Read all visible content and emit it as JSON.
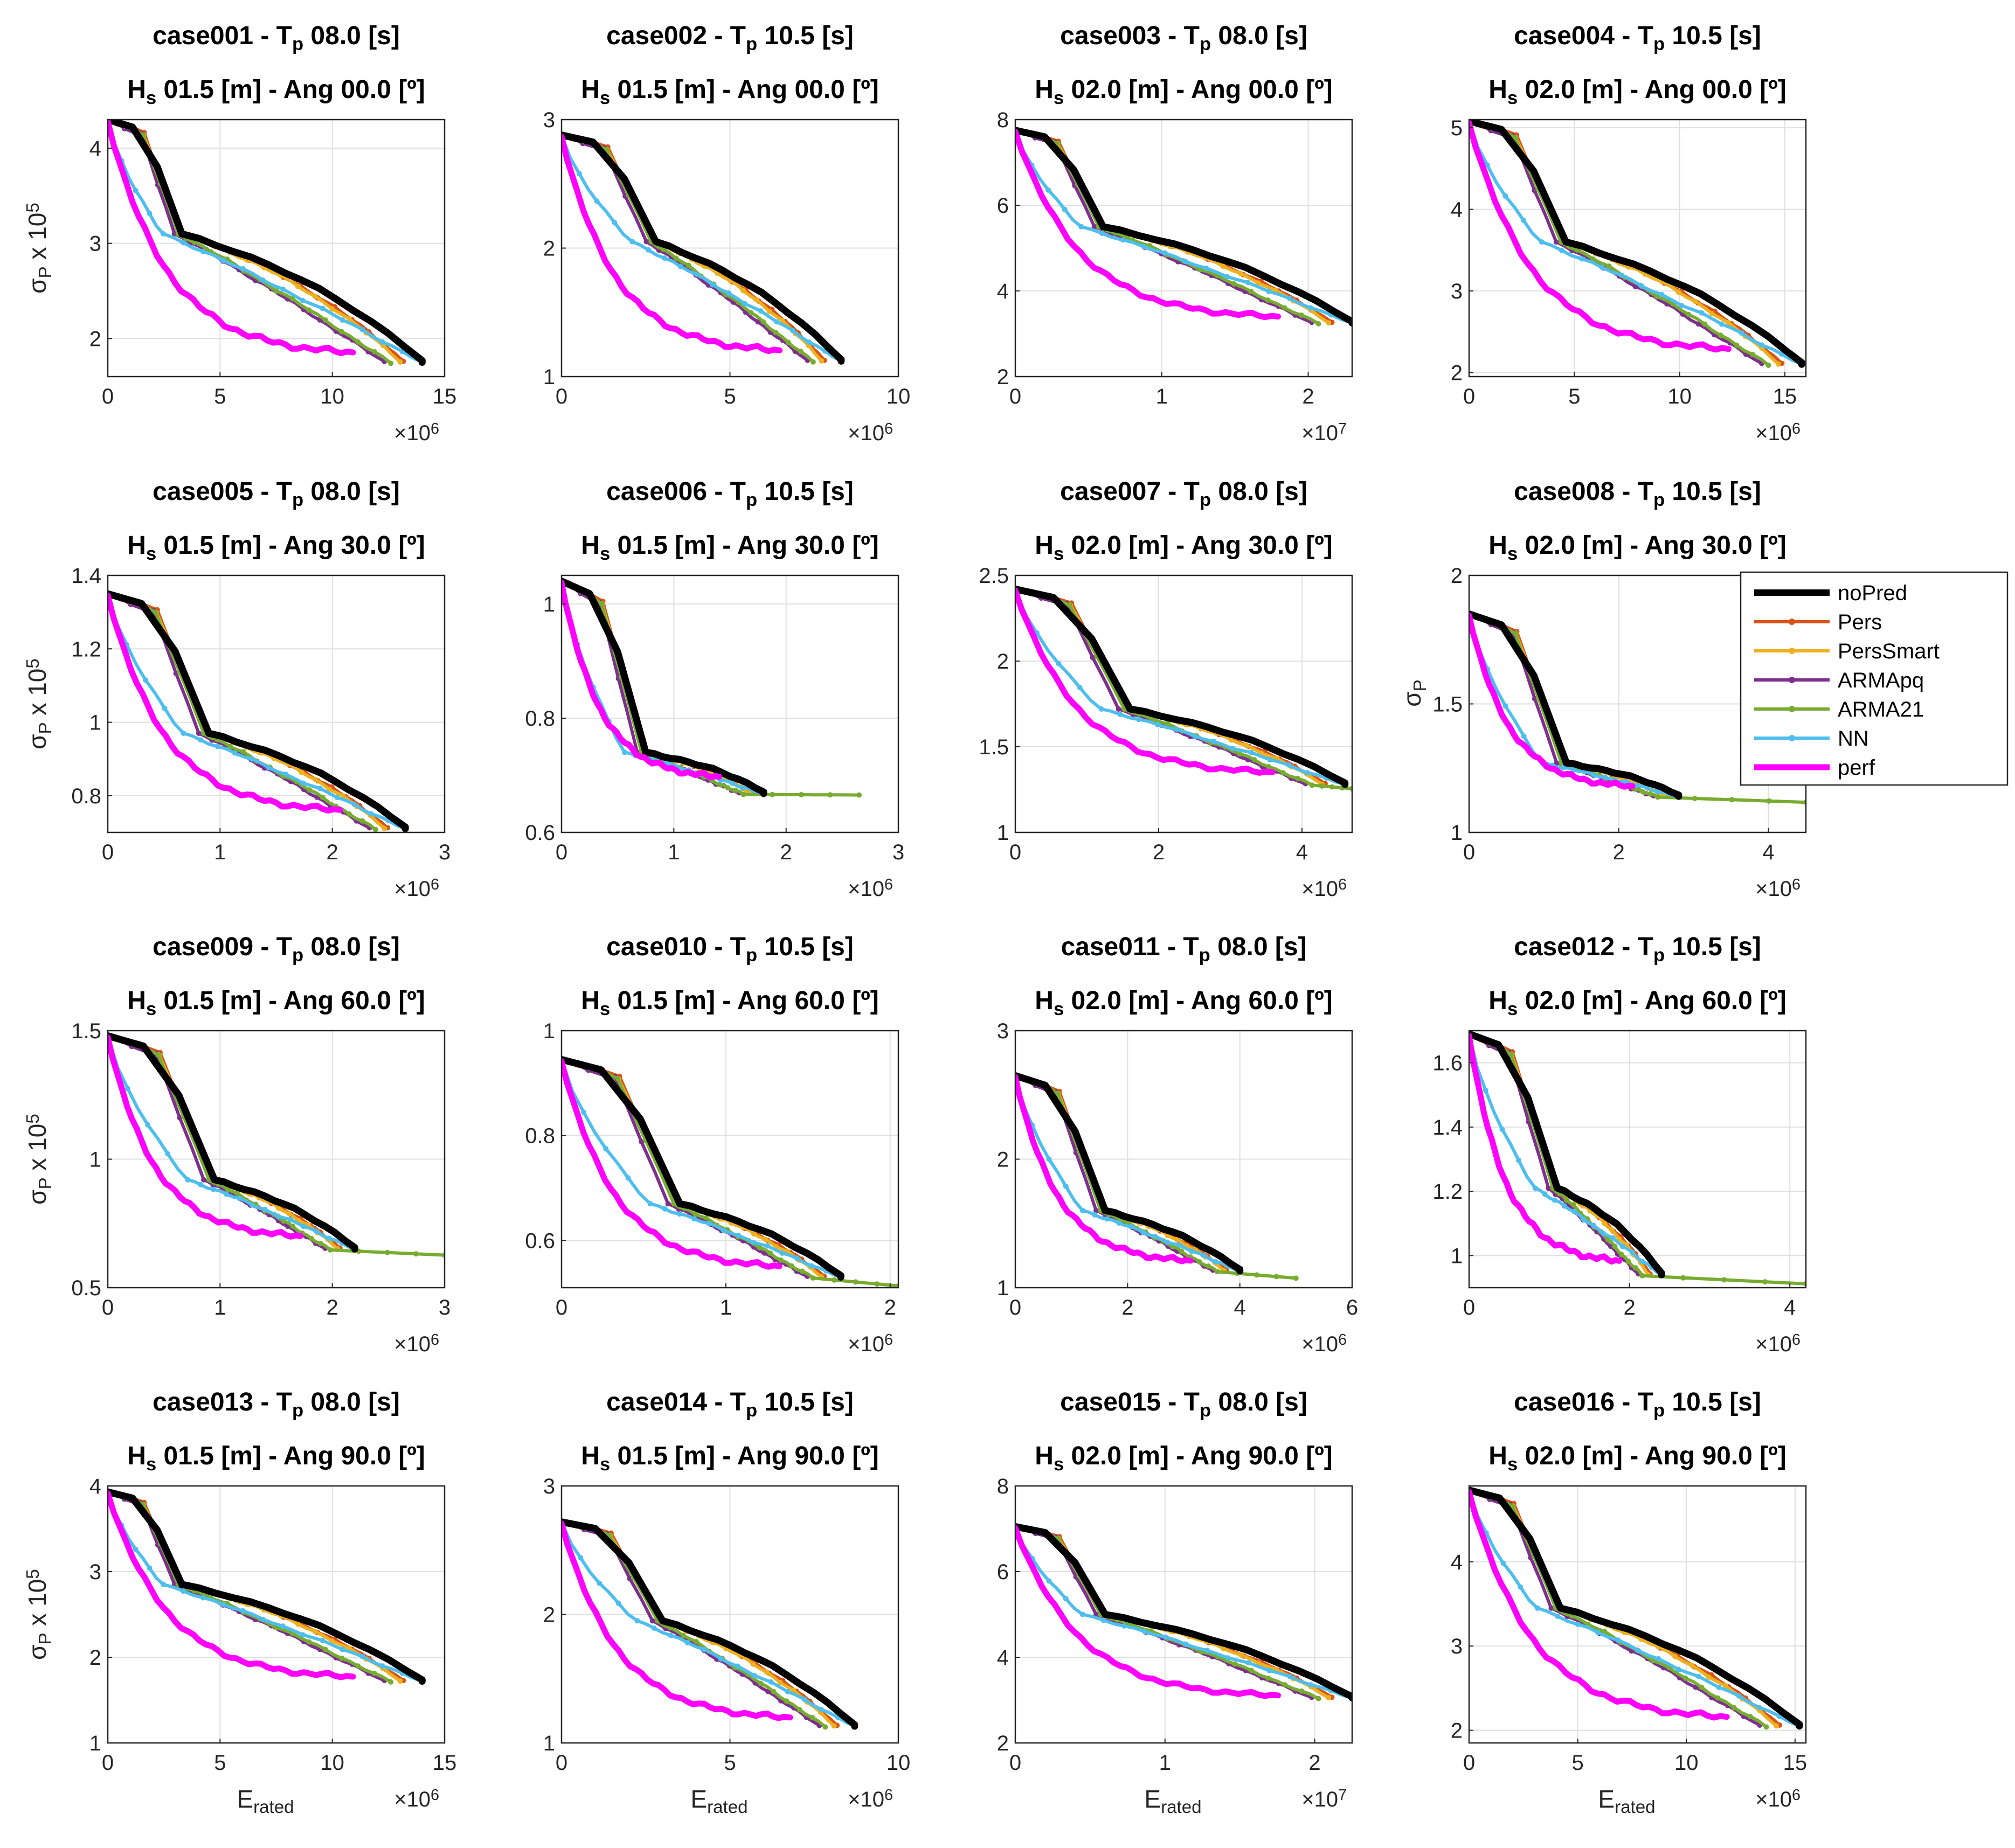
{
  "series_styles": [
    {
      "name": "noPred",
      "color": "#000000",
      "width": 13,
      "markers": false
    },
    {
      "name": "Pers",
      "color": "#D95319",
      "width": 6,
      "markers": true
    },
    {
      "name": "PersSmart",
      "color": "#EDB120",
      "width": 6,
      "markers": true
    },
    {
      "name": "ARMApq",
      "color": "#7E2F8E",
      "width": 6,
      "markers": true
    },
    {
      "name": "ARMA21",
      "color": "#77AC30",
      "width": 6,
      "markers": true
    },
    {
      "name": "NN",
      "color": "#4DBEEE",
      "width": 6,
      "markers": true
    },
    {
      "name": "perf",
      "color": "#FF00FF",
      "width": 11,
      "markers": false
    }
  ],
  "labels": {
    "y_scaled": [
      "σ",
      "P",
      " x 10",
      "5"
    ],
    "y_plain": [
      "σ",
      "P"
    ],
    "x": [
      "E",
      "rated"
    ]
  },
  "chart_data": [
    {
      "type": "line",
      "title": [
        "case001 - T",
        "p",
        " 08.0 [s]"
      ],
      "subtitle": [
        "H",
        "s",
        " 01.5 [m] - Ang 00.0 [º]"
      ],
      "xlim": [
        0,
        15
      ],
      "xticks": [
        0,
        5,
        10,
        15
      ],
      "ylim": [
        1.6,
        4.3
      ],
      "yticks": [
        2,
        3,
        4
      ],
      "x_exp": "6",
      "knee": [
        3.3,
        3.1
      ],
      "end": [
        14,
        1.75
      ],
      "top": 4.3,
      "minY": 1.6,
      "ylabel": "scaled",
      "xlabel": false,
      "legend": false
    },
    {
      "type": "line",
      "title": [
        "case002 - T",
        "p",
        " 10.5 [s]"
      ],
      "subtitle": [
        "H",
        "s",
        " 01.5 [m] - Ang 00.0 [º]"
      ],
      "xlim": [
        0,
        10
      ],
      "xticks": [
        0,
        5,
        10
      ],
      "ylim": [
        1,
        3
      ],
      "yticks": [
        1,
        2,
        3
      ],
      "x_exp": "6",
      "knee": [
        2.8,
        2.05
      ],
      "end": [
        8.3,
        1.12
      ],
      "top": 2.88,
      "minY": 1.03,
      "ylabel": "none",
      "xlabel": false,
      "legend": false
    },
    {
      "type": "line",
      "title": [
        "case003 - T",
        "p",
        " 08.0 [s]"
      ],
      "subtitle": [
        "H",
        "s",
        " 02.0 [m] - Ang 00.0 [º]"
      ],
      "xlim": [
        0,
        2.3
      ],
      "xticks": [
        0,
        1,
        2
      ],
      "ylim": [
        2,
        8
      ],
      "yticks": [
        2,
        4,
        6,
        8
      ],
      "x_exp": "7",
      "knee": [
        0.6,
        5.5
      ],
      "end": [
        2.3,
        3.25
      ],
      "top": 7.75,
      "minY": 2.95,
      "ylabel": "none",
      "xlabel": false,
      "legend": false
    },
    {
      "type": "line",
      "title": [
        "case004 - T",
        "p",
        " 10.5 [s]"
      ],
      "subtitle": [
        "H",
        "s",
        " 02.0 [m] - Ang 00.0 [º]"
      ],
      "xlim": [
        0,
        16
      ],
      "xticks": [
        0,
        5,
        10,
        15
      ],
      "ylim": [
        1.95,
        5.1
      ],
      "yticks": [
        2,
        3,
        4,
        5
      ],
      "x_exp": "6",
      "knee": [
        4.6,
        3.6
      ],
      "end": [
        15.8,
        2.1
      ],
      "top": 5.08,
      "minY": 2.0,
      "ylabel": "none",
      "xlabel": false,
      "legend": false
    },
    {
      "type": "line",
      "title": [
        "case005 - T",
        "p",
        " 08.0 [s]"
      ],
      "subtitle": [
        "H",
        "s",
        " 01.5 [m] - Ang 30.0 [º]"
      ],
      "xlim": [
        0,
        3
      ],
      "xticks": [
        0,
        1,
        2,
        3
      ],
      "ylim": [
        0.7,
        1.4
      ],
      "yticks": [
        0.8,
        1,
        1.2,
        1.4
      ],
      "x_exp": "6",
      "knee": [
        0.9,
        0.97
      ],
      "end": [
        2.65,
        0.71
      ],
      "top": 1.35,
      "minY": 0.7,
      "ylabel": "scaled",
      "xlabel": false,
      "legend": false
    },
    {
      "type": "line",
      "title": [
        "case006 - T",
        "p",
        " 10.5 [s]"
      ],
      "subtitle": [
        "H",
        "s",
        " 01.5 [m] - Ang 30.0 [º]"
      ],
      "xlim": [
        0,
        3
      ],
      "xticks": [
        0,
        1,
        2,
        3
      ],
      "ylim": [
        0.6,
        1.05
      ],
      "yticks": [
        0.6,
        0.8,
        1
      ],
      "x_exp": "6",
      "knee": [
        0.75,
        0.74
      ],
      "end": [
        1.8,
        0.668
      ],
      "top": 1.04,
      "minY": 0.662,
      "ylabel": "none",
      "xlabel": false,
      "legend": false,
      "tail": {
        "x": 2.65,
        "y": 0.667
      }
    },
    {
      "type": "line",
      "title": [
        "case007 - T",
        "p",
        " 08.0 [s]"
      ],
      "subtitle": [
        "H",
        "s",
        " 02.0 [m] - Ang 30.0 [º]"
      ],
      "xlim": [
        0,
        4.7
      ],
      "xticks": [
        0,
        2,
        4
      ],
      "ylim": [
        1,
        2.5
      ],
      "yticks": [
        1,
        1.5,
        2,
        2.5
      ],
      "x_exp": "6",
      "knee": [
        1.6,
        1.72
      ],
      "end": [
        4.6,
        1.28
      ],
      "top": 2.42,
      "minY": 1.24,
      "ylabel": "none",
      "xlabel": false,
      "legend": false,
      "tail": {
        "x": 4.7,
        "y": 1.26
      }
    },
    {
      "type": "line",
      "title": [
        "case008 - T",
        "p",
        " 10.5 [s]"
      ],
      "subtitle": [
        "H",
        "s",
        " 02.0 [m] - Ang 30.0 [º]"
      ],
      "xlim": [
        0,
        4.5
      ],
      "xticks": [
        0,
        2,
        4
      ],
      "ylim": [
        1,
        2
      ],
      "yticks": [
        1,
        1.5,
        2
      ],
      "x_exp": "6",
      "knee": [
        1.3,
        1.27
      ],
      "end": [
        2.8,
        1.14
      ],
      "top": 1.85,
      "minY": 1.11,
      "ylabel": "plain",
      "xlabel": false,
      "legend": true,
      "tail": {
        "x": 4.5,
        "y": 1.12
      }
    },
    {
      "type": "line",
      "title": [
        "case009 - T",
        "p",
        " 08.0 [s]"
      ],
      "subtitle": [
        "H",
        "s",
        " 01.5 [m] - Ang 60.0 [º]"
      ],
      "xlim": [
        0,
        3
      ],
      "xticks": [
        0,
        1,
        2,
        3
      ],
      "ylim": [
        0.5,
        1.5
      ],
      "yticks": [
        0.5,
        1,
        1.5
      ],
      "x_exp": "6",
      "knee": [
        0.95,
        0.92
      ],
      "end": [
        2.2,
        0.65
      ],
      "top": 1.48,
      "minY": 0.62,
      "ylabel": "scaled",
      "xlabel": false,
      "legend": false,
      "tail": {
        "x": 3.0,
        "y": 0.63
      }
    },
    {
      "type": "line",
      "title": [
        "case010 - T",
        "p",
        " 10.5 [s]"
      ],
      "subtitle": [
        "H",
        "s",
        " 01.5 [m] - Ang 60.0 [º]"
      ],
      "xlim": [
        0,
        2.05
      ],
      "xticks": [
        0,
        1,
        2
      ],
      "ylim": [
        0.51,
        1
      ],
      "yticks": [
        0.6,
        0.8,
        1
      ],
      "x_exp": "6",
      "knee": [
        0.72,
        0.67
      ],
      "end": [
        1.7,
        0.53
      ],
      "top": 0.945,
      "minY": 0.51,
      "ylabel": "none",
      "xlabel": false,
      "legend": false,
      "tail": {
        "x": 2.05,
        "y": 0.515
      }
    },
    {
      "type": "line",
      "title": [
        "case011 - T",
        "p",
        " 08.0 [s]"
      ],
      "subtitle": [
        "H",
        "s",
        " 02.0 [m] - Ang 60.0 [º]"
      ],
      "xlim": [
        0,
        6
      ],
      "xticks": [
        0,
        2,
        4,
        6
      ],
      "ylim": [
        1,
        3
      ],
      "yticks": [
        1,
        2,
        3
      ],
      "x_exp": "6",
      "knee": [
        1.6,
        1.6
      ],
      "end": [
        4.0,
        1.13
      ],
      "top": 2.65,
      "minY": 1.06,
      "ylabel": "none",
      "xlabel": false,
      "legend": false,
      "tail": {
        "x": 5.0,
        "y": 1.08
      }
    },
    {
      "type": "line",
      "title": [
        "case012 - T",
        "p",
        " 10.5 [s]"
      ],
      "subtitle": [
        "H",
        "s",
        " 02.0 [m] - Ang 60.0 [º]"
      ],
      "xlim": [
        0,
        4.2
      ],
      "xticks": [
        0,
        2,
        4
      ],
      "ylim": [
        0.9,
        1.7
      ],
      "yticks": [
        1,
        1.2,
        1.4,
        1.6
      ],
      "x_exp": "6",
      "knee": [
        1.1,
        1.21
      ],
      "end": [
        2.4,
        0.94
      ],
      "top": 1.69,
      "minY": 0.91,
      "ylabel": "none",
      "xlabel": false,
      "legend": false,
      "tail": {
        "x": 4.2,
        "y": 0.915
      }
    },
    {
      "type": "line",
      "title": [
        "case013 - T",
        "p",
        " 08.0 [s]"
      ],
      "subtitle": [
        "H",
        "s",
        " 01.5 [m] - Ang 90.0 [º]"
      ],
      "xlim": [
        0,
        15
      ],
      "xticks": [
        0,
        5,
        10,
        15
      ],
      "ylim": [
        1,
        4
      ],
      "yticks": [
        1,
        2,
        3,
        4
      ],
      "x_exp": "6",
      "knee": [
        3.3,
        2.85
      ],
      "end": [
        14.0,
        1.72
      ],
      "top": 3.93,
      "minY": 1.55,
      "ylabel": "scaled",
      "xlabel": true,
      "legend": false
    },
    {
      "type": "line",
      "title": [
        "case014 - T",
        "p",
        " 10.5 [s]"
      ],
      "subtitle": [
        "H",
        "s",
        " 01.5 [m] - Ang 90.0 [º]"
      ],
      "xlim": [
        0,
        10
      ],
      "xticks": [
        0,
        5,
        10
      ],
      "ylim": [
        1,
        3
      ],
      "yticks": [
        1,
        2,
        3
      ],
      "x_exp": "6",
      "knee": [
        3.0,
        1.95
      ],
      "end": [
        8.7,
        1.13
      ],
      "top": 2.72,
      "minY": 1.04,
      "ylabel": "none",
      "xlabel": true,
      "legend": false
    },
    {
      "type": "line",
      "title": [
        "case015 - T",
        "p",
        " 08.0 [s]"
      ],
      "subtitle": [
        "H",
        "s",
        " 02.0 [m] - Ang 90.0 [º]"
      ],
      "xlim": [
        0,
        2.25
      ],
      "xticks": [
        0,
        1,
        2
      ],
      "ylim": [
        2,
        8
      ],
      "yticks": [
        2,
        4,
        6,
        8
      ],
      "x_exp": "7",
      "knee": [
        0.6,
        5.0
      ],
      "end": [
        2.25,
        3.05
      ],
      "top": 7.05,
      "minY": 2.7,
      "ylabel": "none",
      "xlabel": true,
      "legend": false
    },
    {
      "type": "line",
      "title": [
        "case016 - T",
        "p",
        " 10.5 [s]"
      ],
      "subtitle": [
        "H",
        "s",
        " 02.0 [m] - Ang 90.0 [º]"
      ],
      "xlim": [
        0,
        15.5
      ],
      "xticks": [
        0,
        5,
        10,
        15
      ],
      "ylim": [
        1.85,
        4.9
      ],
      "yticks": [
        2,
        3,
        4
      ],
      "x_exp": "6",
      "knee": [
        4.2,
        3.45
      ],
      "end": [
        15.2,
        2.05
      ],
      "top": 4.85,
      "minY": 1.88,
      "ylabel": "none",
      "xlabel": true,
      "legend": false
    }
  ]
}
